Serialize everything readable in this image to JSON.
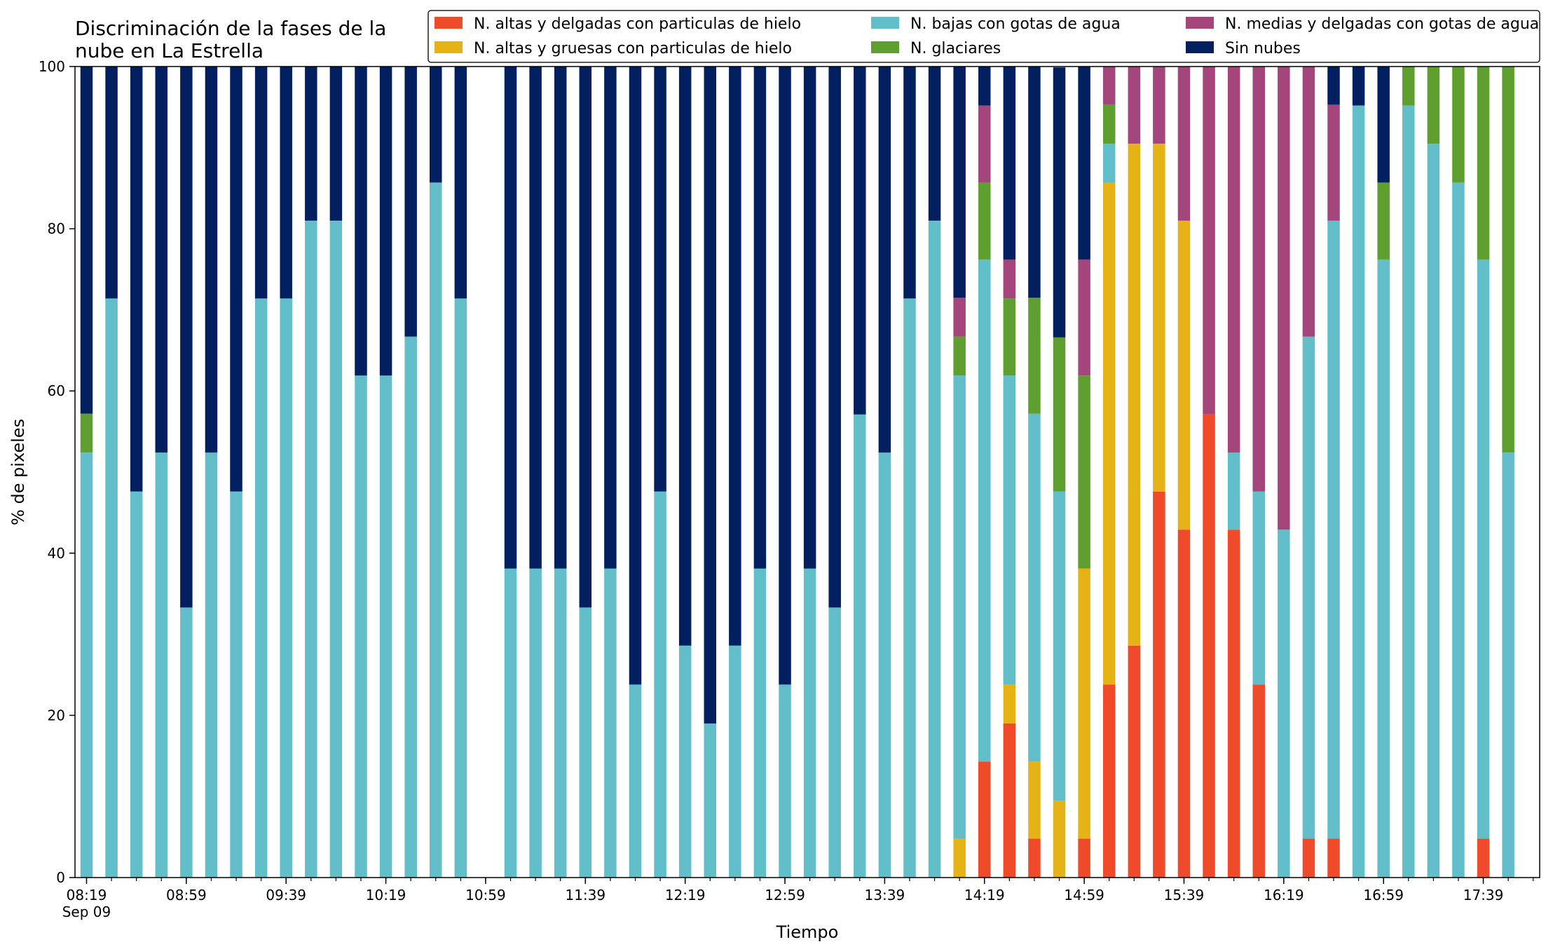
{
  "chart_data": {
    "type": "bar",
    "stacked": true,
    "title_lines": [
      "Discriminación de la fases de la",
      "nube en La Estrella"
    ],
    "xlabel": "Tiempo",
    "ylabel": "% de pixeles",
    "ylim": [
      0,
      100
    ],
    "yticks": [
      0,
      20,
      40,
      60,
      80,
      100
    ],
    "xtick_labels": [
      "08:19",
      "08:59",
      "09:39",
      "10:19",
      "10:59",
      "11:39",
      "12:19",
      "12:59",
      "13:39",
      "14:19",
      "14:59",
      "15:39",
      "16:19",
      "16:59",
      "17:39"
    ],
    "xtick_date": "Sep 09",
    "time_start": "08:19",
    "time_step_minutes": 10,
    "legend_position": "top-right",
    "grid": false,
    "categories": [
      "08:19",
      "08:29",
      "08:39",
      "08:49",
      "08:59",
      "09:09",
      "09:19",
      "09:29",
      "09:39",
      "09:49",
      "09:59",
      "10:09",
      "10:19",
      "10:29",
      "10:39",
      "10:49",
      "10:59",
      "11:09",
      "11:19",
      "11:29",
      "11:39",
      "11:49",
      "11:59",
      "12:09",
      "12:19",
      "12:29",
      "12:39",
      "12:49",
      "12:59",
      "13:09",
      "13:19",
      "13:29",
      "13:39",
      "13:49",
      "13:59",
      "14:09",
      "14:19",
      "14:29",
      "14:39",
      "14:49",
      "14:59",
      "15:09",
      "15:19",
      "15:29",
      "15:39",
      "15:49",
      "15:59",
      "16:09",
      "16:19",
      "16:29",
      "16:39",
      "16:49",
      "16:59",
      "17:09",
      "17:19",
      "17:29",
      "17:39",
      "17:49"
    ],
    "series": [
      {
        "name": "N. altas y delgadas con particulas de hielo",
        "color": "#ef4a2a",
        "values": [
          0,
          0,
          0,
          0,
          0,
          0,
          0,
          0,
          0,
          0,
          0,
          0,
          0,
          0,
          0,
          0,
          0,
          0,
          0,
          0,
          0,
          0,
          0,
          0,
          0,
          0,
          0,
          0,
          0,
          0,
          0,
          0,
          0,
          0,
          0,
          0,
          14.3,
          19,
          4.8,
          0,
          4.8,
          23.8,
          28.6,
          47.6,
          42.9,
          57.1,
          42.9,
          23.8,
          0,
          4.8,
          4.8,
          0,
          0,
          0,
          0,
          0,
          4.8,
          0
        ]
      },
      {
        "name": "N. altas y gruesas con particulas de hielo",
        "color": "#e5b315",
        "values": [
          0,
          0,
          0,
          0,
          0,
          0,
          0,
          0,
          0,
          0,
          0,
          0,
          0,
          0,
          0,
          0,
          0,
          0,
          0,
          0,
          0,
          0,
          0,
          0,
          0,
          0,
          0,
          0,
          0,
          0,
          0,
          0,
          0,
          0,
          0,
          4.8,
          0,
          4.8,
          9.5,
          9.5,
          33.3,
          61.9,
          61.9,
          42.9,
          38.1,
          0,
          0,
          0,
          0,
          0,
          0,
          0,
          0,
          0,
          0,
          0,
          0,
          0
        ]
      },
      {
        "name": "N. bajas con gotas de agua",
        "color": "#62bec9",
        "values": [
          52.4,
          71.4,
          47.6,
          52.4,
          33.3,
          52.4,
          47.6,
          71.4,
          71.4,
          81,
          81,
          61.9,
          61.9,
          66.7,
          85.7,
          71.4,
          0,
          38.1,
          38.1,
          38.1,
          33.3,
          38.1,
          23.8,
          47.6,
          28.6,
          19,
          28.6,
          38.1,
          23.8,
          38.1,
          33.3,
          57.1,
          52.4,
          71.4,
          81,
          57.1,
          61.9,
          38.1,
          42.9,
          38.1,
          0,
          4.8,
          0,
          0,
          0,
          0,
          9.5,
          23.8,
          42.9,
          61.9,
          76.2,
          95.2,
          76.2,
          95.2,
          90.5,
          85.7,
          71.4,
          52.4
        ]
      },
      {
        "name": "N. glaciares",
        "color": "#5f9f2f",
        "values": [
          4.8,
          0,
          0,
          0,
          0,
          0,
          0,
          0,
          0,
          0,
          0,
          0,
          0,
          0,
          0,
          0,
          0,
          0,
          0,
          0,
          0,
          0,
          0,
          0,
          0,
          0,
          0,
          0,
          0,
          0,
          0,
          0,
          0,
          0,
          0,
          4.8,
          9.5,
          9.5,
          14.3,
          19,
          23.8,
          4.8,
          0,
          0,
          0,
          0,
          0,
          0,
          0,
          0,
          0,
          0,
          9.5,
          4.8,
          9.5,
          14.3,
          23.8,
          47.6
        ]
      },
      {
        "name": "N. medias y delgadas con gotas de agua",
        "color": "#a4467b",
        "values": [
          0,
          0,
          0,
          0,
          0,
          0,
          0,
          0,
          0,
          0,
          0,
          0,
          0,
          0,
          0,
          0,
          0,
          0,
          0,
          0,
          0,
          0,
          0,
          0,
          0,
          0,
          0,
          0,
          0,
          0,
          0,
          0,
          0,
          0,
          0,
          4.8,
          9.5,
          4.8,
          0,
          0,
          14.3,
          4.8,
          9.5,
          9.5,
          19,
          42.9,
          47.6,
          52.4,
          57.1,
          33.3,
          14.3,
          0,
          0,
          0,
          0,
          0,
          0,
          0
        ]
      },
      {
        "name": "Sin nubes",
        "color": "#02205f",
        "values": [
          42.8,
          28.6,
          52.4,
          47.6,
          66.7,
          47.6,
          52.4,
          28.6,
          28.6,
          19,
          19,
          38.1,
          38.1,
          33.3,
          14.3,
          28.6,
          0,
          61.9,
          61.9,
          61.9,
          66.7,
          61.9,
          76.2,
          52.4,
          71.4,
          81,
          71.4,
          61.9,
          76.2,
          61.9,
          66.7,
          42.9,
          47.6,
          28.6,
          19,
          28.6,
          4.8,
          23.8,
          28.6,
          33.3,
          23.8,
          0,
          0,
          0,
          0,
          0,
          0,
          0,
          0,
          0,
          4.8,
          4.8,
          14.3,
          0,
          0,
          0,
          0,
          0
        ]
      }
    ]
  }
}
